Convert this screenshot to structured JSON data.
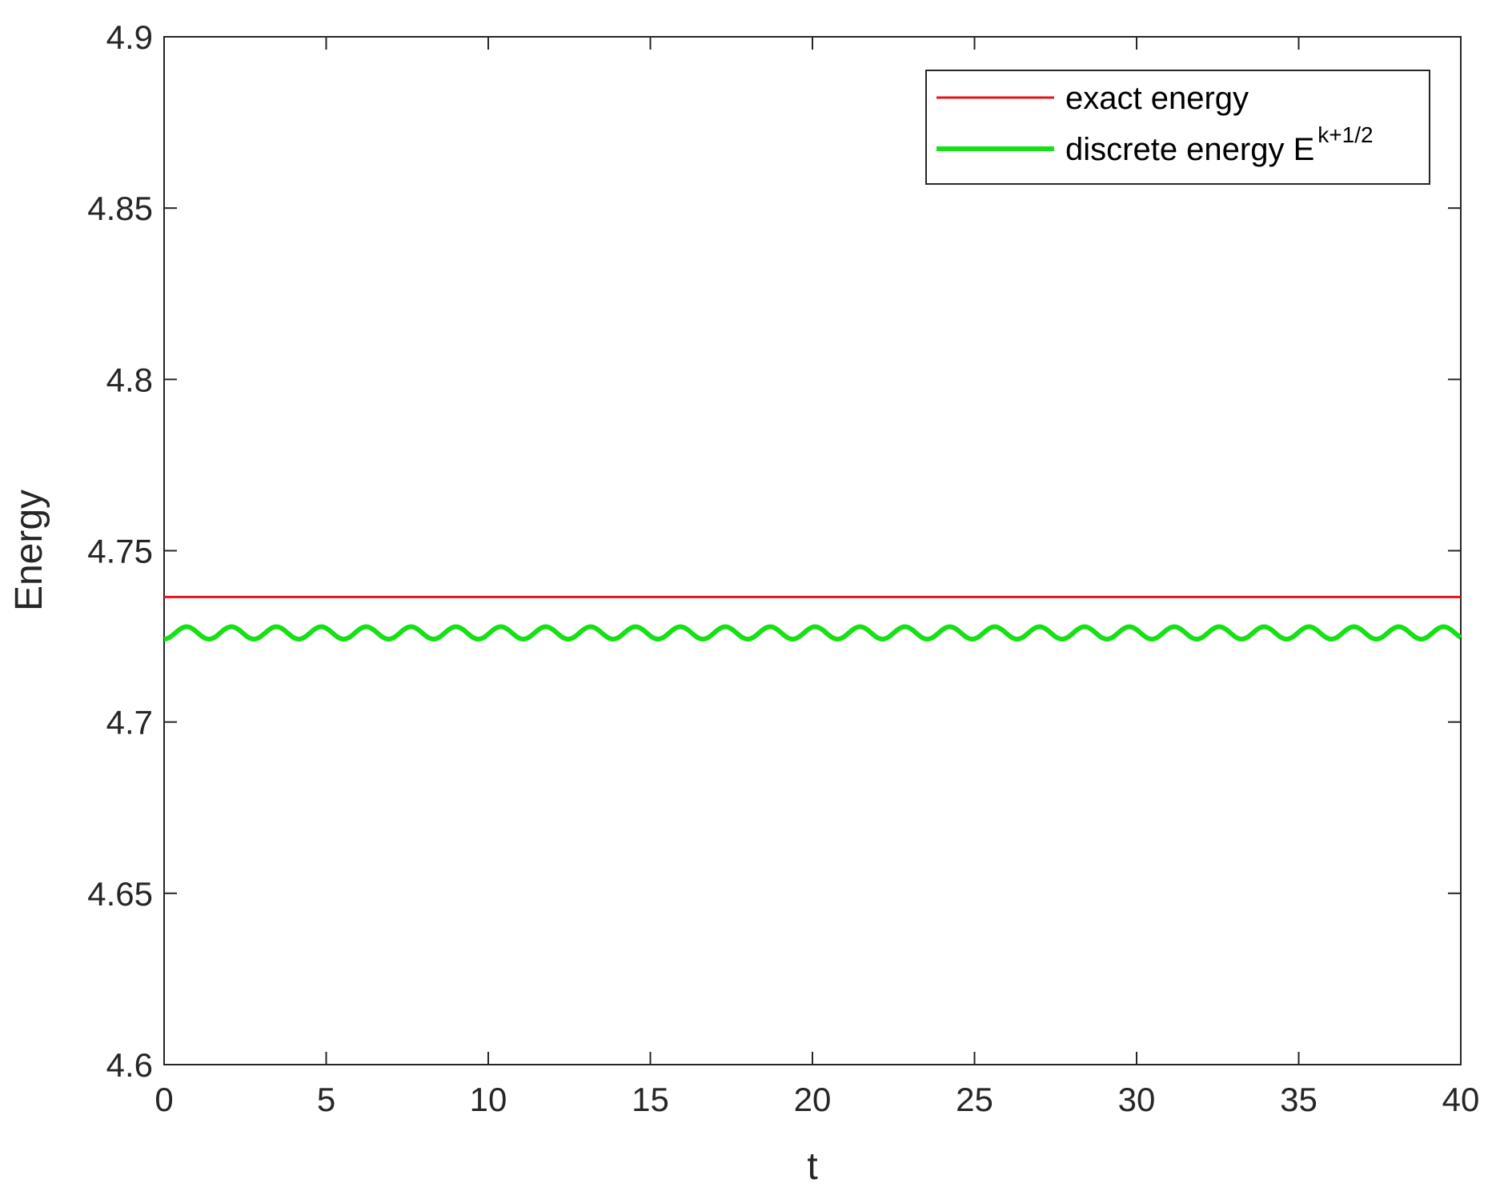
{
  "chart_data": {
    "type": "line",
    "xlabel": "t",
    "ylabel": "Energy",
    "xlim": [
      0,
      40
    ],
    "ylim": [
      4.6,
      4.9
    ],
    "xticks": [
      "0",
      "5",
      "10",
      "15",
      "20",
      "25",
      "30",
      "35",
      "40"
    ],
    "yticks": [
      "4.6",
      "4.65",
      "4.7",
      "4.75",
      "4.8",
      "4.85",
      "4.9"
    ],
    "grid": false,
    "legend_position": "top-right",
    "series": [
      {
        "name": "exact energy",
        "color": "#e0141b",
        "x": [
          0,
          40
        ],
        "y": [
          4.7365,
          4.7365
        ]
      },
      {
        "name_main": "discrete energy E",
        "name_sup": "k+1/2",
        "color": "#16e016",
        "oscillation": {
          "mean": 4.726,
          "amplitude": 0.0018,
          "period": 1.385,
          "min_at_t": 0
        }
      }
    ]
  }
}
